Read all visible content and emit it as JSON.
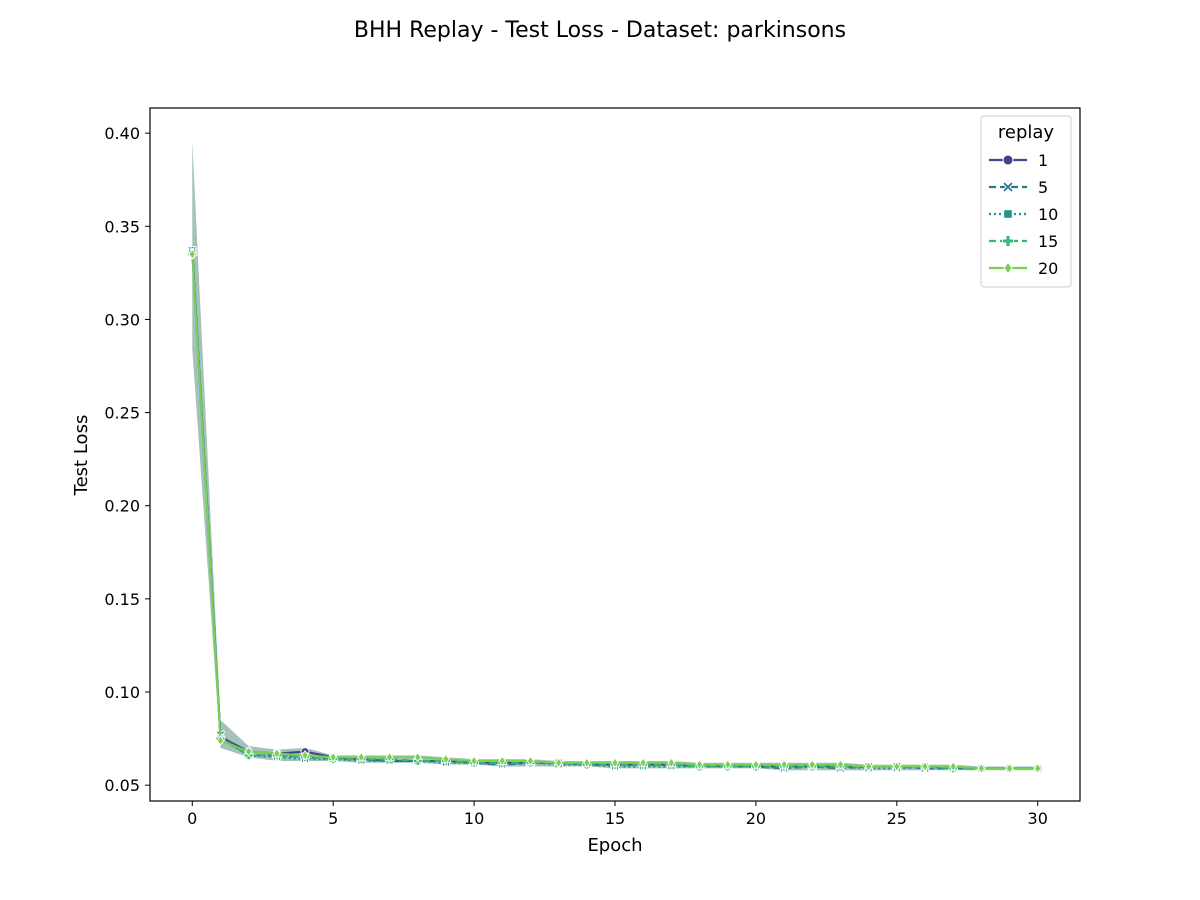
{
  "chart_data": {
    "type": "line",
    "title": "BHH Replay - Test Loss - Dataset: parkinsons",
    "xlabel": "Epoch",
    "ylabel": "Test Loss",
    "xlim": [
      -1.5,
      31.5
    ],
    "ylim": [
      0.0415,
      0.4135
    ],
    "xticks": [
      0,
      5,
      10,
      15,
      20,
      25,
      30
    ],
    "xtick_labels": [
      "0",
      "5",
      "10",
      "15",
      "20",
      "25",
      "30"
    ],
    "yticks": [
      0.05,
      0.1,
      0.15,
      0.2,
      0.25,
      0.3,
      0.35,
      0.4
    ],
    "ytick_labels": [
      "0.05",
      "0.10",
      "0.15",
      "0.20",
      "0.25",
      "0.30",
      "0.35",
      "0.40"
    ],
    "grid": false,
    "legend": {
      "title": "replay",
      "placement": "top-right"
    },
    "x": [
      0,
      1,
      2,
      3,
      4,
      5,
      6,
      7,
      8,
      9,
      10,
      11,
      12,
      13,
      14,
      15,
      16,
      17,
      18,
      19,
      20,
      21,
      22,
      23,
      24,
      25,
      26,
      27,
      28,
      29,
      30
    ],
    "series": [
      {
        "name": "1",
        "color": "#414487",
        "marker": "circle",
        "dash": "solid",
        "values": [
          0.337,
          0.076,
          0.068,
          0.067,
          0.068,
          0.065,
          0.064,
          0.063,
          0.063,
          0.063,
          0.062,
          0.062,
          0.062,
          0.062,
          0.061,
          0.061,
          0.061,
          0.061,
          0.061,
          0.06,
          0.06,
          0.06,
          0.06,
          0.06,
          0.06,
          0.06,
          0.06,
          0.059,
          0.059,
          0.059,
          0.059
        ]
      },
      {
        "name": "5",
        "color": "#2a788e",
        "marker": "x",
        "dash": "dashed",
        "values": [
          0.337,
          0.077,
          0.066,
          0.066,
          0.065,
          0.064,
          0.064,
          0.063,
          0.063,
          0.063,
          0.062,
          0.061,
          0.062,
          0.062,
          0.061,
          0.061,
          0.061,
          0.061,
          0.06,
          0.06,
          0.06,
          0.059,
          0.06,
          0.059,
          0.06,
          0.06,
          0.059,
          0.059,
          0.059,
          0.059,
          0.059
        ]
      },
      {
        "name": "10",
        "color": "#21918c",
        "marker": "square",
        "dash": "dotted",
        "values": [
          0.336,
          0.075,
          0.066,
          0.065,
          0.064,
          0.064,
          0.063,
          0.063,
          0.063,
          0.062,
          0.062,
          0.061,
          0.062,
          0.061,
          0.061,
          0.06,
          0.06,
          0.06,
          0.06,
          0.06,
          0.06,
          0.06,
          0.06,
          0.06,
          0.059,
          0.059,
          0.06,
          0.059,
          0.059,
          0.059,
          0.059
        ]
      },
      {
        "name": "15",
        "color": "#35b779",
        "marker": "plus",
        "dash": "dashed",
        "values": [
          0.335,
          0.075,
          0.066,
          0.066,
          0.065,
          0.064,
          0.064,
          0.064,
          0.063,
          0.063,
          0.062,
          0.062,
          0.062,
          0.062,
          0.061,
          0.061,
          0.061,
          0.061,
          0.06,
          0.06,
          0.06,
          0.06,
          0.06,
          0.06,
          0.06,
          0.06,
          0.06,
          0.059,
          0.059,
          0.059,
          0.059
        ]
      },
      {
        "name": "20",
        "color": "#7ad151",
        "marker": "diamond",
        "dash": "solid",
        "values": [
          0.335,
          0.074,
          0.068,
          0.067,
          0.066,
          0.065,
          0.065,
          0.065,
          0.065,
          0.064,
          0.063,
          0.063,
          0.063,
          0.062,
          0.062,
          0.062,
          0.062,
          0.062,
          0.061,
          0.061,
          0.061,
          0.061,
          0.061,
          0.061,
          0.06,
          0.06,
          0.06,
          0.06,
          0.059,
          0.059,
          0.059
        ]
      }
    ],
    "band": {
      "color": "#5a8e83",
      "lower": [
        0.284,
        0.07,
        0.065,
        0.063,
        0.063,
        0.063,
        0.062,
        0.062,
        0.062,
        0.061,
        0.061,
        0.06,
        0.06,
        0.06,
        0.06,
        0.059,
        0.059,
        0.059,
        0.059,
        0.059,
        0.059,
        0.058,
        0.058,
        0.058,
        0.058,
        0.058,
        0.058,
        0.058,
        0.058,
        0.058,
        0.058
      ],
      "upper": [
        0.396,
        0.085,
        0.071,
        0.069,
        0.07,
        0.066,
        0.066,
        0.066,
        0.066,
        0.065,
        0.064,
        0.064,
        0.064,
        0.063,
        0.063,
        0.063,
        0.063,
        0.063,
        0.062,
        0.062,
        0.062,
        0.062,
        0.062,
        0.062,
        0.061,
        0.061,
        0.061,
        0.061,
        0.06,
        0.06,
        0.06
      ]
    }
  }
}
